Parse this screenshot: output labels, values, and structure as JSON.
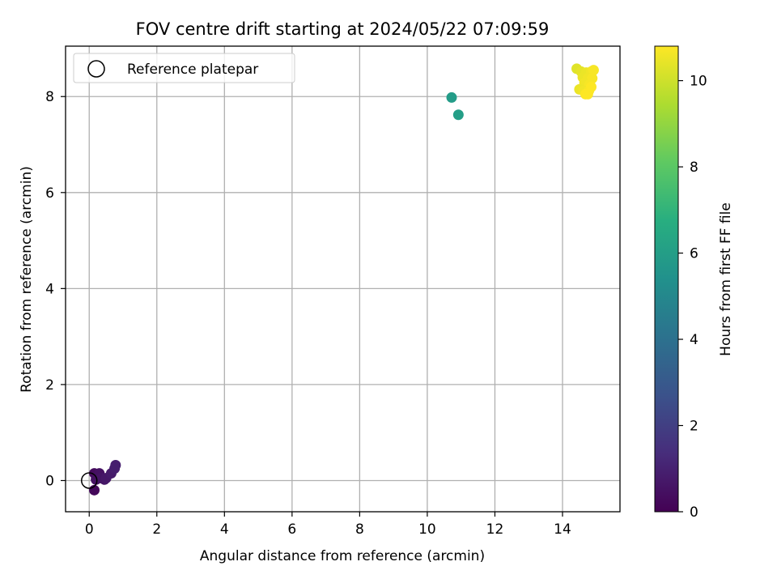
{
  "chart_data": {
    "type": "scatter",
    "title": "FOV centre drift starting at 2024/05/22 07:09:59",
    "xlabel": "Angular distance from reference (arcmin)",
    "ylabel": "Rotation from reference (arcmin)",
    "xlim": [
      -0.7,
      15.7
    ],
    "ylim": [
      -0.65,
      9.05
    ],
    "xticks": [
      0,
      2,
      4,
      6,
      8,
      10,
      12,
      14
    ],
    "yticks": [
      0,
      2,
      4,
      6,
      8
    ],
    "grid": true,
    "legend": {
      "placement": "upper-left",
      "entries": [
        {
          "label": "Reference platepar",
          "marker": "hollow-circle"
        }
      ]
    },
    "reference_point": {
      "x": 0,
      "y": 0
    },
    "colorbar": {
      "label": "Hours from first FF file",
      "colormap": "viridis",
      "range": [
        0,
        10.8
      ],
      "ticks": [
        0,
        2,
        4,
        6,
        8,
        10
      ]
    },
    "points": [
      {
        "x": 0.15,
        "y": 0.15,
        "hours": 0.3
      },
      {
        "x": 0.25,
        "y": 0.1,
        "hours": 0.4
      },
      {
        "x": 0.3,
        "y": 0.15,
        "hours": 0.5
      },
      {
        "x": 0.2,
        "y": 0.02,
        "hours": 0.5
      },
      {
        "x": 0.35,
        "y": 0.05,
        "hours": 0.6
      },
      {
        "x": 0.45,
        "y": 0.02,
        "hours": 0.6
      },
      {
        "x": 0.5,
        "y": 0.05,
        "hours": 0.7
      },
      {
        "x": 0.65,
        "y": 0.15,
        "hours": 0.8
      },
      {
        "x": 0.75,
        "y": 0.25,
        "hours": 0.9
      },
      {
        "x": 0.78,
        "y": 0.32,
        "hours": 0.9
      },
      {
        "x": 0.15,
        "y": -0.2,
        "hours": 0.2
      },
      {
        "x": 10.72,
        "y": 7.98,
        "hours": 5.9
      },
      {
        "x": 10.92,
        "y": 7.62,
        "hours": 6.0
      },
      {
        "x": 14.42,
        "y": 8.58,
        "hours": 10.3
      },
      {
        "x": 14.55,
        "y": 8.52,
        "hours": 10.4
      },
      {
        "x": 14.7,
        "y": 8.5,
        "hours": 10.5
      },
      {
        "x": 14.85,
        "y": 8.52,
        "hours": 10.6
      },
      {
        "x": 14.92,
        "y": 8.55,
        "hours": 10.7
      },
      {
        "x": 14.6,
        "y": 8.4,
        "hours": 10.5
      },
      {
        "x": 14.75,
        "y": 8.38,
        "hours": 10.6
      },
      {
        "x": 14.88,
        "y": 8.38,
        "hours": 10.7
      },
      {
        "x": 14.65,
        "y": 8.28,
        "hours": 10.6
      },
      {
        "x": 14.8,
        "y": 8.25,
        "hours": 10.7
      },
      {
        "x": 14.5,
        "y": 8.15,
        "hours": 10.5
      },
      {
        "x": 14.62,
        "y": 8.12,
        "hours": 10.6
      },
      {
        "x": 14.78,
        "y": 8.12,
        "hours": 10.7
      },
      {
        "x": 14.68,
        "y": 8.05,
        "hours": 10.8
      },
      {
        "x": 14.75,
        "y": 8.05,
        "hours": 10.8
      },
      {
        "x": 14.85,
        "y": 8.2,
        "hours": 10.8
      }
    ]
  }
}
